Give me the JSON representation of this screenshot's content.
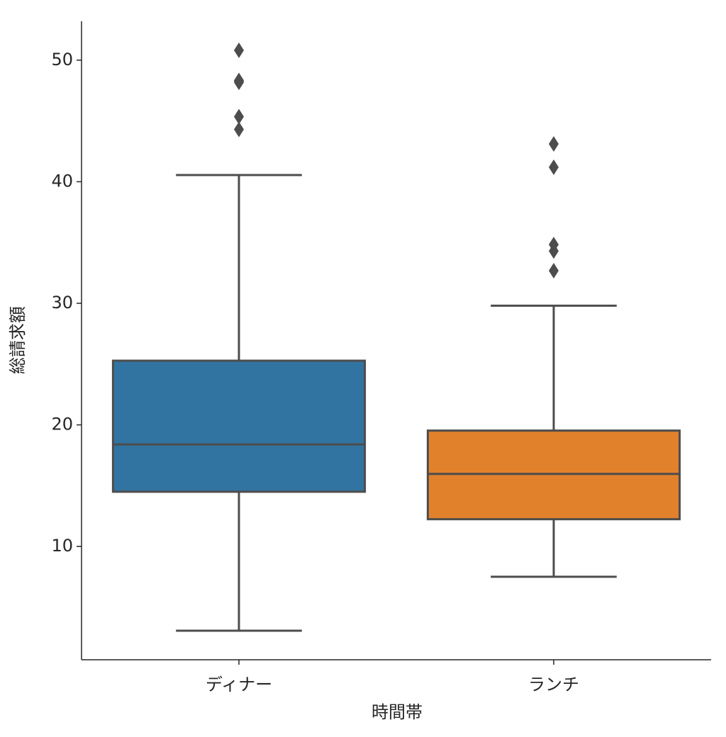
{
  "chart_data": {
    "type": "box",
    "x_label": "時間帯",
    "y_label": "総請求額",
    "categories": [
      "ディナー",
      "ランチ"
    ],
    "boxes": [
      {
        "whisker_low": 3.07,
        "q1": 14.5,
        "median": 18.39,
        "q3": 25.28,
        "whisker_high": 40.55,
        "outliers": [
          50.81,
          48.33,
          48.27,
          48.17,
          45.35,
          44.3
        ],
        "color": "#3274a1"
      },
      {
        "whisker_low": 7.51,
        "q1": 12.24,
        "median": 15.97,
        "q3": 19.53,
        "whisker_high": 29.8,
        "outliers": [
          43.11,
          41.19,
          34.83,
          34.3,
          32.68
        ],
        "color": "#e1812c"
      }
    ],
    "ylim": [
      0.68,
      53.2
    ],
    "yticks": [
      10,
      20,
      30,
      40,
      50
    ],
    "line_color": "#4d4d4d"
  }
}
